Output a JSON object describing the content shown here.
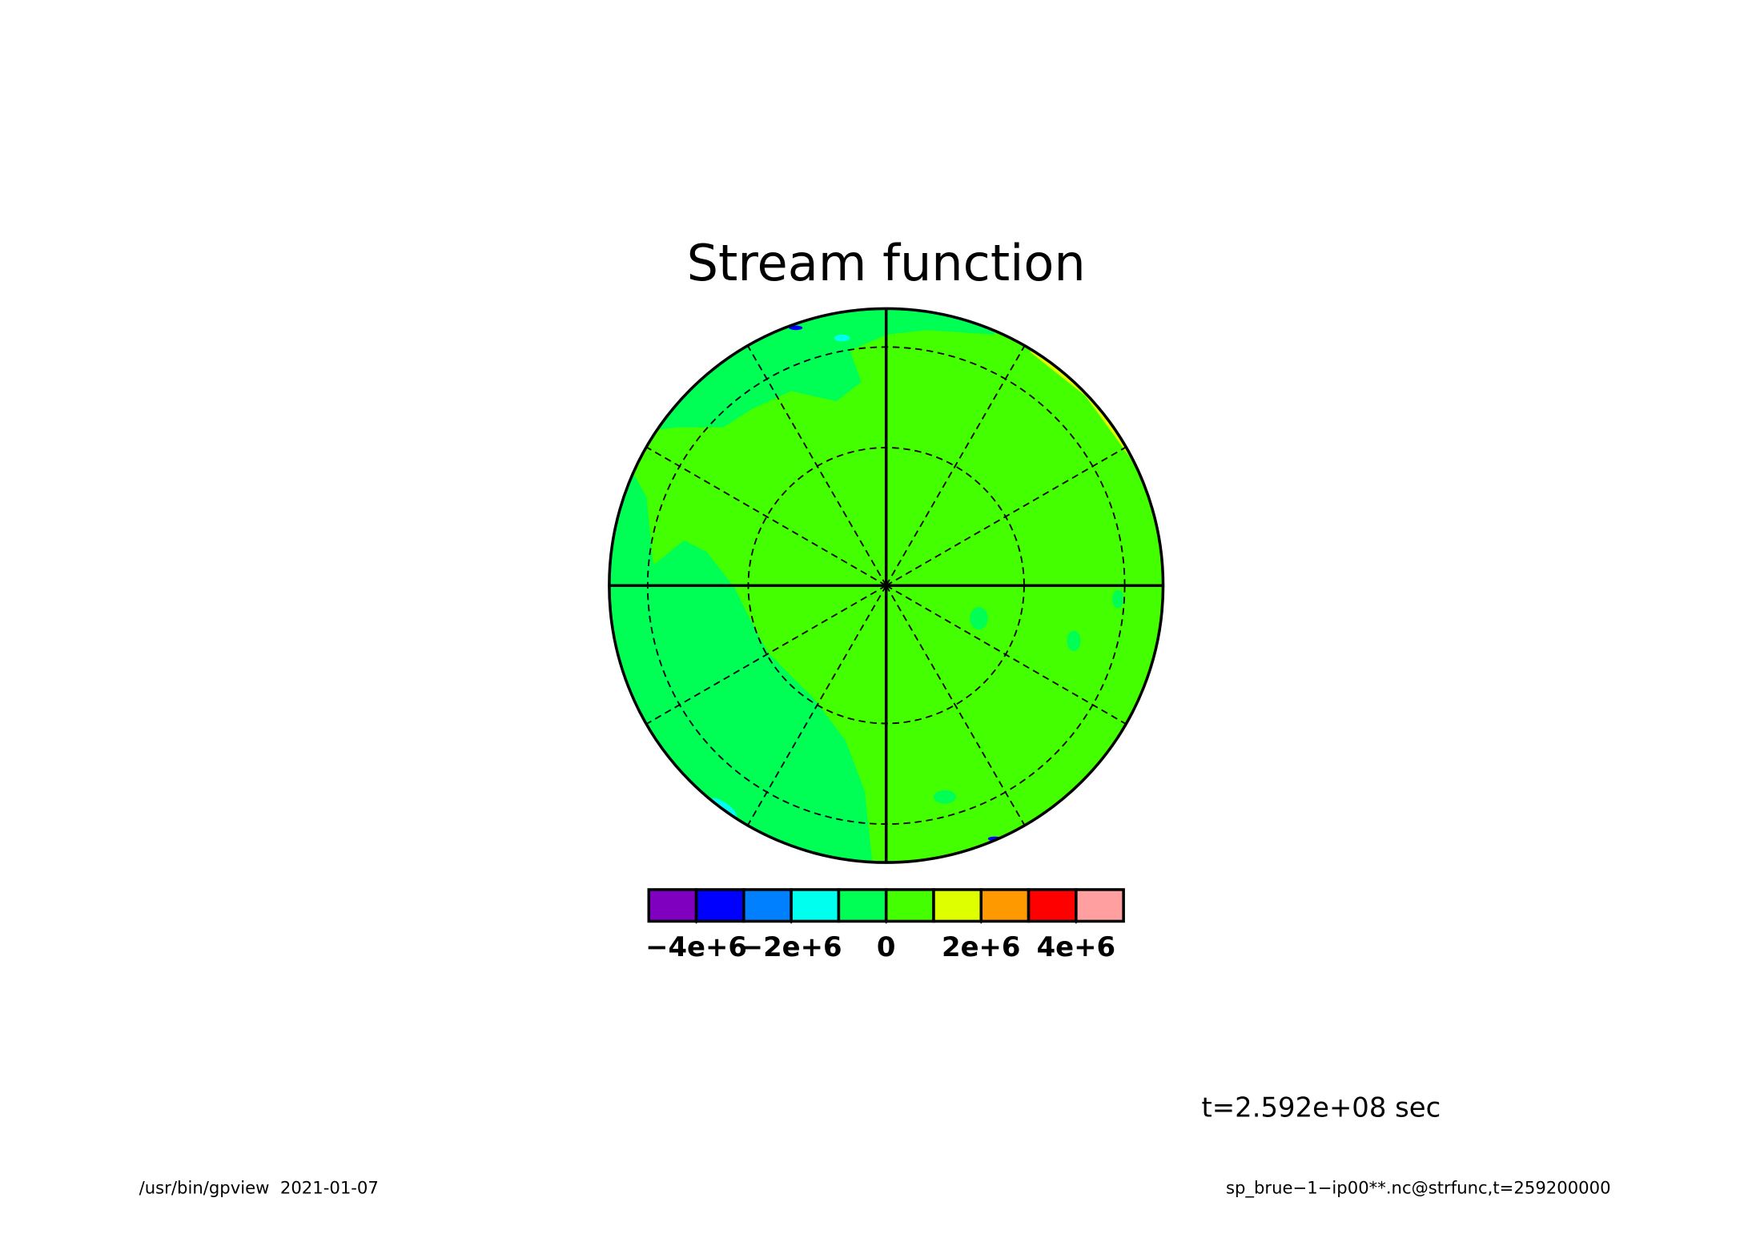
{
  "chart_data": {
    "type": "polar-contour",
    "title": "Stream function",
    "annotation": "t=2.592e+08 sec",
    "footer_left": "/usr/bin/gpview  2021-01-07",
    "footer_right": "sp_brue−1−ip00**.nc@strfunc,t=259200000",
    "colorbar": {
      "levels": [
        -5000000,
        -4000000,
        -3000000,
        -2000000,
        -1000000,
        0,
        1000000,
        2000000,
        3000000,
        4000000,
        5000000
      ],
      "colors": [
        "#7f00bf",
        "#0000ff",
        "#0080ff",
        "#00ffee",
        "#00ff55",
        "#44ff00",
        "#ddff00",
        "#ff9900",
        "#ff0000",
        "#ff9f9f"
      ],
      "ticks": [
        {
          "value": -4000000,
          "label": "−4e+6"
        },
        {
          "value": -2000000,
          "label": "−2e+6"
        },
        0,
        {
          "value": 2000000,
          "label": "2e+6"
        },
        {
          "value": 4000000,
          "label": "4e+6"
        }
      ]
    }
  }
}
